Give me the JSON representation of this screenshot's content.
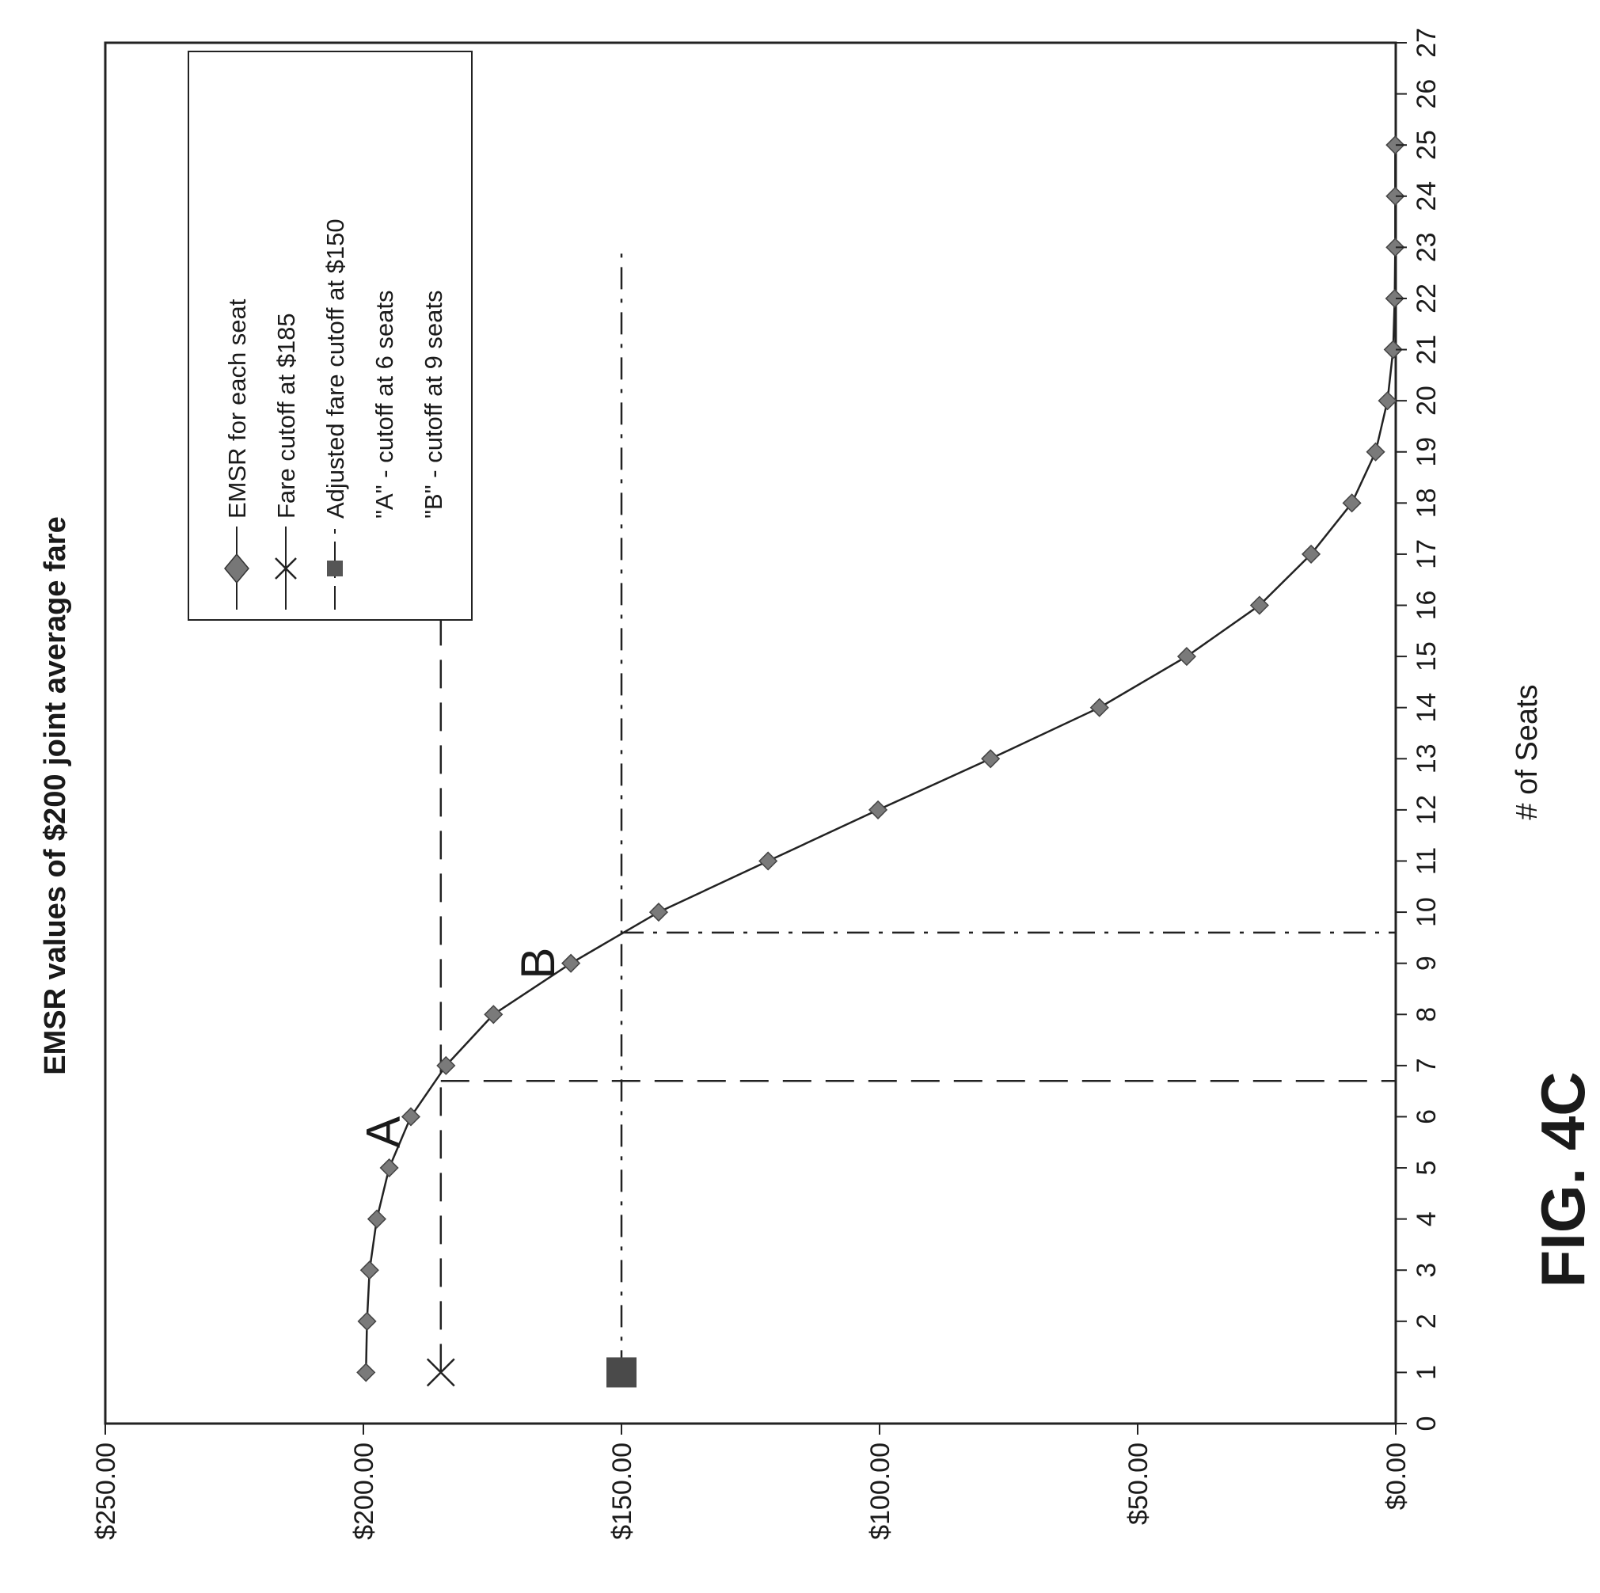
{
  "chart_data": {
    "type": "line",
    "title": "EMSR values of $200 joint average fare",
    "xlabel": "# of Seats",
    "ylabel": "",
    "xlim": [
      0,
      27
    ],
    "ylim": [
      0,
      250
    ],
    "x_ticks": [
      0,
      1,
      2,
      3,
      4,
      5,
      6,
      7,
      8,
      9,
      10,
      11,
      12,
      13,
      14,
      15,
      16,
      17,
      18,
      19,
      20,
      21,
      22,
      23,
      24,
      25,
      26,
      27
    ],
    "y_ticks": [
      {
        "value": 0,
        "label": "$0.00"
      },
      {
        "value": 50,
        "label": "$50.00"
      },
      {
        "value": 100,
        "label": "$100.00"
      },
      {
        "value": 150,
        "label": "$150.00"
      },
      {
        "value": 200,
        "label": "$200.00"
      },
      {
        "value": 250,
        "label": "$250.00"
      }
    ],
    "series": [
      {
        "name": "EMSR for each seat",
        "marker": "diamond",
        "x": [
          1,
          2,
          3,
          4,
          5,
          6,
          7,
          8,
          9,
          10,
          11,
          12,
          13,
          14,
          15,
          16,
          17,
          18,
          19,
          20,
          21,
          22,
          23,
          24,
          25
        ],
        "values": [
          199.5,
          199.3,
          198.8,
          197.4,
          195,
          190.8,
          184,
          174.8,
          159.8,
          142.8,
          121.6,
          100.3,
          78.5,
          57.4,
          40.5,
          26.4,
          16.4,
          8.5,
          3.9,
          1.6,
          0.5,
          0.2,
          0.1,
          0.1,
          0.1
        ]
      },
      {
        "name": "Fare cutoff at $185",
        "marker": "x",
        "value": 185,
        "x_range": [
          1,
          16
        ]
      },
      {
        "name": "Adjusted fare cutoff at $150",
        "marker": "square",
        "value": 150,
        "x_range": [
          1,
          23
        ]
      }
    ],
    "vertical_cutoffs": [
      {
        "label": "\"A\" - cutoff at 6 seats",
        "x": 6.7,
        "from": 185,
        "style": "dashed"
      },
      {
        "label": "\"B\" - cutoff at 9 seats",
        "x": 9.6,
        "from": 150,
        "style": "dash-dot"
      }
    ],
    "annotations": [
      {
        "text": "A",
        "x": 5.7,
        "y": 193
      },
      {
        "text": "B",
        "x": 9.0,
        "y": 163
      }
    ],
    "legend": {
      "placement": "top-right",
      "entries": [
        "EMSR for each seat",
        "Fare cutoff at $185",
        "Adjusted fare cutoff at $150",
        "\"A\" - cutoff at 6 seats",
        "\"B\" - cutoff at 9 seats"
      ]
    },
    "figure_label": "FIG. 4C",
    "grid": false
  }
}
